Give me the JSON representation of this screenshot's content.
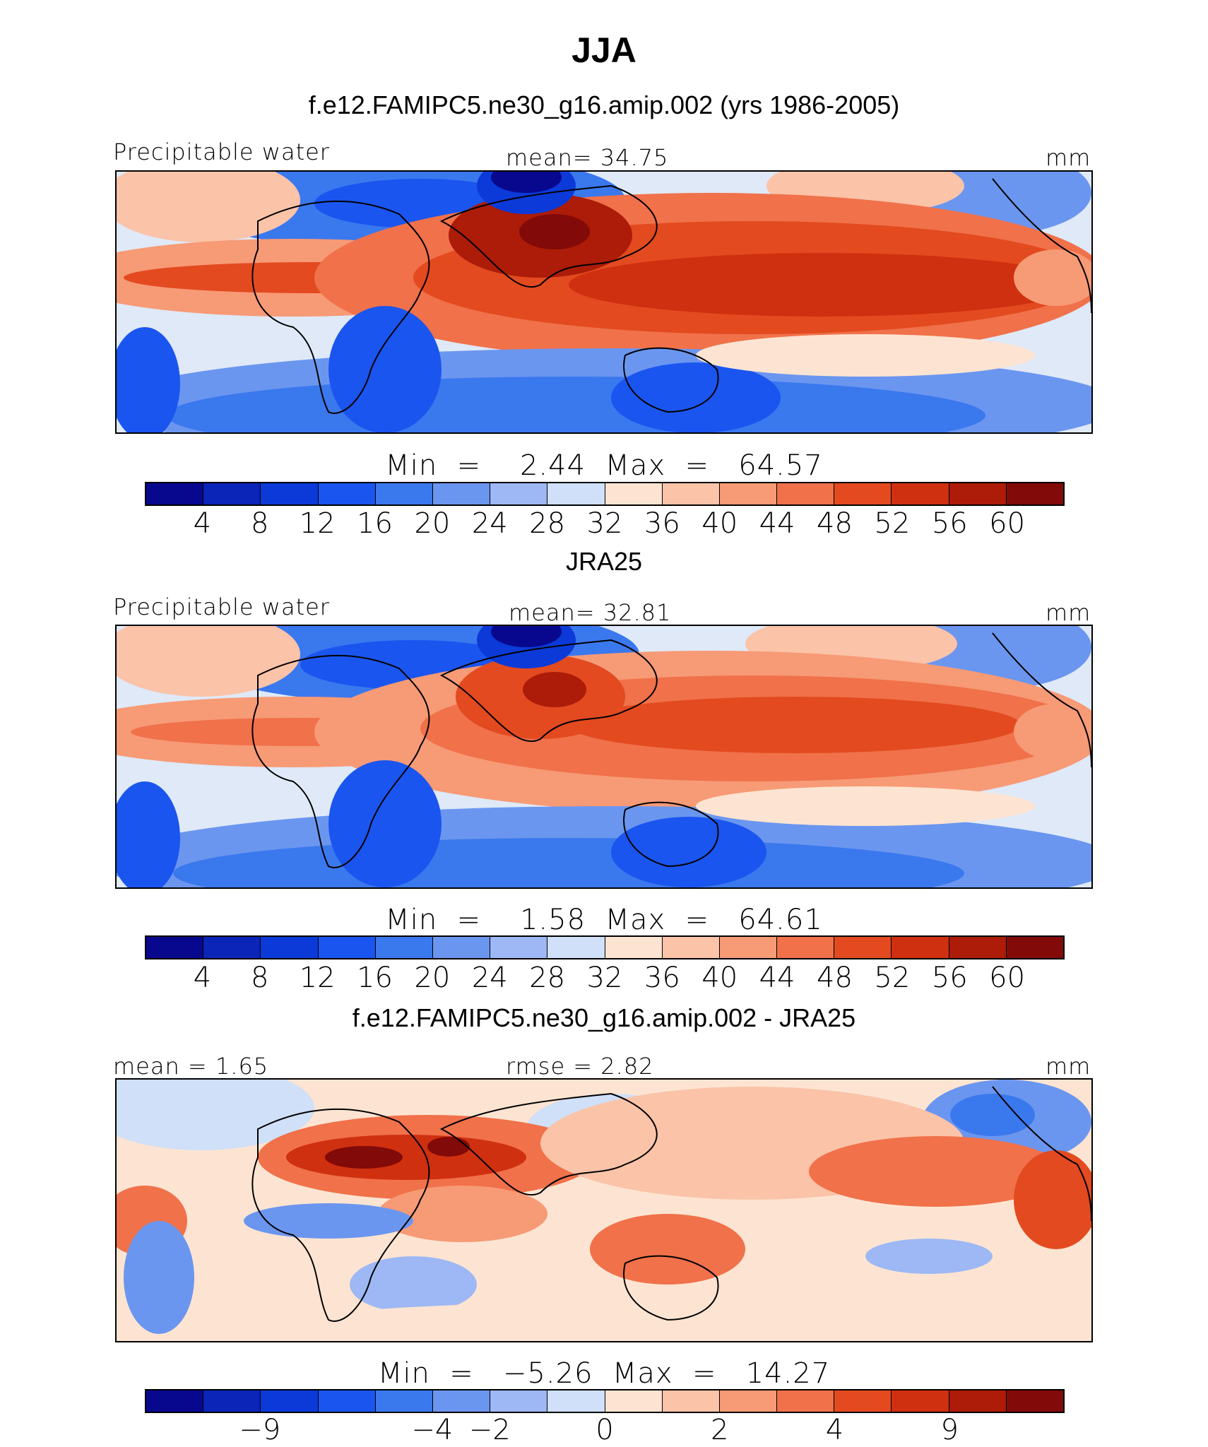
{
  "title": "JJA",
  "palette": [
    "#08088e",
    "#0a25b8",
    "#0b3ad8",
    "#1a55ef",
    "#3a78ee",
    "#6b96ef",
    "#9db8f4",
    "#cfe0f8",
    "#fde4d2",
    "#fbc3a8",
    "#f79a76",
    "#f0714a",
    "#e34a20",
    "#cf3010",
    "#ac1c08",
    "#820a08"
  ],
  "chart_data": [
    {
      "type": "heatmap",
      "subtitle": "f.e12.FAMIPC5.ne30_g16.amip.002 (yrs 1986-2005)",
      "left_label": "Precipitable water",
      "center_label": "mean=  34.75",
      "right_label": "mm",
      "min_max": "Min  =    2.44  Max  =   64.57",
      "mean": 34.75,
      "min": 2.44,
      "max": 64.57,
      "units": "mm",
      "colorbar_ticks": [
        "4",
        "8",
        "12",
        "16",
        "20",
        "24",
        "28",
        "32",
        "36",
        "40",
        "44",
        "48",
        "52",
        "56",
        "60"
      ]
    },
    {
      "type": "heatmap",
      "subtitle": "JRA25",
      "left_label": "Precipitable water",
      "center_label": "mean=  32.81",
      "right_label": "mm",
      "min_max": "Min  =    1.58  Max  =   64.61",
      "mean": 32.81,
      "min": 1.58,
      "max": 64.61,
      "units": "mm",
      "colorbar_ticks": [
        "4",
        "8",
        "12",
        "16",
        "20",
        "24",
        "28",
        "32",
        "36",
        "40",
        "44",
        "48",
        "52",
        "56",
        "60"
      ]
    },
    {
      "type": "heatmap",
      "subtitle": "f.e12.FAMIPC5.ne30_g16.amip.002 - JRA25",
      "left_label": "mean =   1.65",
      "center_label": "rmse =   2.82",
      "right_label": "mm",
      "min_max": "Min  =   −5.26  Max  =   14.27",
      "mean": 1.65,
      "rmse": 2.82,
      "min": -5.26,
      "max": 14.27,
      "units": "mm",
      "colorbar_ticks": [
        "−9",
        "−4",
        "−2",
        "0",
        "2",
        "4",
        "9"
      ]
    }
  ]
}
